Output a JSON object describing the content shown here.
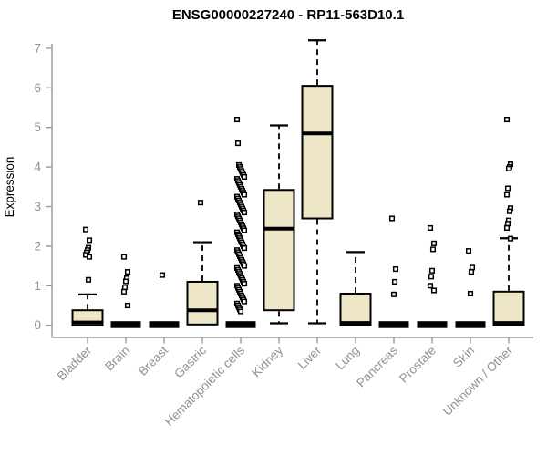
{
  "colors": {
    "box_fill": "#ede6c7",
    "box_stroke": "#000000",
    "axis_line": "#9a9a9a",
    "axis_text": "#909090",
    "title_text": "#000000",
    "background": "#ffffff"
  },
  "chart_data": {
    "type": "boxplot",
    "title": "ENSG00000227240 - RP11-563D10.1",
    "xlabel": "",
    "ylabel": "Expression",
    "ylim": [
      0,
      7
    ],
    "yticks": [
      0,
      1,
      2,
      3,
      4,
      5,
      6,
      7
    ],
    "grid": false,
    "legend": "none",
    "categories": [
      "Bladder",
      "Brain",
      "Breast",
      "Gastric",
      "Hematopoietic cells",
      "Kidney",
      "Liver",
      "Lung",
      "Pancreas",
      "Prostate",
      "Skin",
      "Unknown / Other"
    ],
    "series": [
      {
        "name": "Bladder",
        "flat": false,
        "q1": 0,
        "median": 0.07,
        "q3": 0.38,
        "whisker_low": null,
        "whisker_high": 0.78,
        "outliers": [
          2.42,
          2.15,
          1.96,
          1.9,
          1.84,
          1.78,
          1.73,
          1.15
        ]
      },
      {
        "name": "Brain",
        "flat": true,
        "q1": 0,
        "median": 0.02,
        "q3": 0.05,
        "whisker_low": null,
        "whisker_high": null,
        "outliers": [
          1.73,
          1.35,
          1.19,
          1.11,
          0.96,
          0.85,
          0.5
        ]
      },
      {
        "name": "Breast",
        "flat": true,
        "q1": 0,
        "median": 0.02,
        "q3": 0.05,
        "whisker_low": null,
        "whisker_high": null,
        "outliers": [
          1.27
        ]
      },
      {
        "name": "Gastric",
        "flat": false,
        "q1": 0.02,
        "median": 0.38,
        "q3": 1.1,
        "whisker_low": null,
        "whisker_high": 2.1,
        "outliers": [
          3.1
        ]
      },
      {
        "name": "Hematopoietic cells",
        "flat": true,
        "dense": true,
        "q1": 0,
        "median": 0.02,
        "q3": 0.05,
        "whisker_low": null,
        "whisker_high": null,
        "outliers": [
          5.2,
          4.6,
          4.05,
          4.0,
          3.95,
          3.9,
          3.85,
          3.8,
          3.75,
          3.7,
          3.65,
          3.6,
          3.55,
          3.5,
          3.45,
          3.4,
          3.35,
          3.3,
          3.25,
          3.2,
          3.15,
          3.1,
          3.05,
          3.0,
          2.95,
          2.9,
          2.85,
          2.8,
          2.75,
          2.7,
          2.65,
          2.6,
          2.55,
          2.5,
          2.45,
          2.4,
          2.35,
          2.3,
          2.25,
          2.2,
          2.15,
          2.1,
          2.05,
          2.0,
          1.95,
          1.9,
          1.85,
          1.8,
          1.75,
          1.7,
          1.65,
          1.6,
          1.55,
          1.5,
          1.45,
          1.4,
          1.35,
          1.3,
          1.25,
          1.2,
          1.15,
          1.1,
          1.05,
          1.0,
          0.95,
          0.9,
          0.85,
          0.8,
          0.75,
          0.7,
          0.65,
          0.6,
          0.55,
          0.5,
          0.45,
          0.4,
          0.35
        ]
      },
      {
        "name": "Kidney",
        "flat": false,
        "q1": 0.38,
        "median": 2.44,
        "q3": 3.42,
        "whisker_low": 0.05,
        "whisker_high": 5.05,
        "outliers": []
      },
      {
        "name": "Liver",
        "flat": false,
        "q1": 2.7,
        "median": 4.85,
        "q3": 6.05,
        "whisker_low": 0.05,
        "whisker_high": 7.2,
        "outliers": []
      },
      {
        "name": "Lung",
        "flat": false,
        "q1": 0,
        "median": 0.06,
        "q3": 0.8,
        "whisker_low": null,
        "whisker_high": 1.85,
        "outliers": []
      },
      {
        "name": "Pancreas",
        "flat": true,
        "q1": 0,
        "median": 0.02,
        "q3": 0.05,
        "whisker_low": null,
        "whisker_high": null,
        "outliers": [
          2.7,
          1.42,
          1.1,
          0.78
        ]
      },
      {
        "name": "Prostate",
        "flat": true,
        "q1": 0,
        "median": 0.02,
        "q3": 0.05,
        "whisker_low": null,
        "whisker_high": null,
        "outliers": [
          2.46,
          2.07,
          1.92,
          1.38,
          1.23,
          1.0,
          0.88
        ]
      },
      {
        "name": "Skin",
        "flat": true,
        "q1": 0,
        "median": 0.02,
        "q3": 0.05,
        "whisker_low": null,
        "whisker_high": null,
        "outliers": [
          1.88,
          1.46,
          1.35,
          0.8
        ]
      },
      {
        "name": "Unknown / Other",
        "flat": false,
        "q1": 0,
        "median": 0.06,
        "q3": 0.85,
        "whisker_low": null,
        "whisker_high": 2.2,
        "outliers": [
          5.2,
          4.07,
          4.0,
          3.96,
          3.46,
          3.3,
          2.96,
          2.88,
          2.65,
          2.57,
          2.46,
          2.19
        ]
      }
    ]
  }
}
